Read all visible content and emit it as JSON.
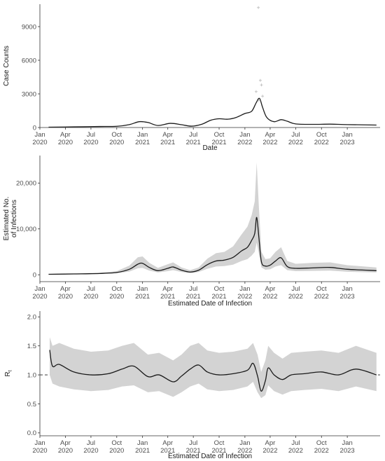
{
  "colors": {
    "line": "#1a1a1a",
    "band": "#d3d3d3",
    "points": "#b8b8b8",
    "axis": "#333333",
    "tick_text": "#4d4d4d",
    "reference": "#222222"
  },
  "chart_data": [
    {
      "id": "cases",
      "type": "line",
      "xlabel": "Date",
      "ylabel": "Case Counts",
      "ylim": [
        0,
        11000
      ],
      "yticks": [
        0,
        3000,
        6000,
        9000
      ],
      "ytick_labels": [
        "0",
        "3000",
        "6000",
        "9000"
      ],
      "x_axis": "date",
      "xlim": [
        "2020-01-01",
        "2023-04-28"
      ],
      "xtick_labels": [
        "Jan\n2020",
        "Apr\n2020",
        "Jul\n2020",
        "Oct\n2020",
        "Jan\n2021",
        "Apr\n2021",
        "Jul\n2021",
        "Oct\n2021",
        "Jan\n2022",
        "Apr\n2022",
        "Jul\n2022",
        "Oct\n2022",
        "Jan\n2023"
      ],
      "grid": false,
      "series": [
        {
          "kind": "smooth_line",
          "x": [
            "2020-02-01",
            "2020-05-01",
            "2020-08-01",
            "2020-10-01",
            "2020-11-15",
            "2020-12-20",
            "2021-01-20",
            "2021-02-25",
            "2021-04-10",
            "2021-05-20",
            "2021-06-25",
            "2021-08-01",
            "2021-09-01",
            "2021-10-01",
            "2021-11-01",
            "2021-12-01",
            "2022-01-01",
            "2022-01-25",
            "2022-02-10",
            "2022-02-22",
            "2022-03-05",
            "2022-03-20",
            "2022-04-15",
            "2022-05-10",
            "2022-06-01",
            "2022-07-01",
            "2022-09-01",
            "2022-11-01",
            "2023-01-01",
            "2023-04-15"
          ],
          "y": [
            30,
            60,
            90,
            110,
            260,
            520,
            450,
            180,
            370,
            250,
            120,
            300,
            650,
            780,
            740,
            900,
            1250,
            1450,
            2200,
            2600,
            1800,
            900,
            520,
            700,
            560,
            320,
            280,
            300,
            260,
            220
          ]
        },
        {
          "kind": "points",
          "x": [
            "2022-02-10",
            "2022-02-18",
            "2022-02-25",
            "2022-03-01",
            "2022-02-20",
            "2022-03-05"
          ],
          "y": [
            3200,
            10700,
            4200,
            3800,
            2400,
            2800
          ]
        }
      ]
    },
    {
      "id": "infections",
      "type": "line",
      "xlabel": "Estimated Date of Infection",
      "ylabel": "Estimated No. of Infections",
      "ylabel_lines": [
        "Estimated No.",
        "of Infections"
      ],
      "ylim": [
        -1500,
        26000
      ],
      "yticks": [
        0,
        10000,
        20000
      ],
      "ytick_labels": [
        "0",
        "10,000",
        "20,000"
      ],
      "x_axis": "date",
      "xlim": [
        "2020-01-01",
        "2023-04-28"
      ],
      "xtick_labels": [
        "Jan\n2020",
        "Apr\n2020",
        "Jul\n2020",
        "Oct\n2020",
        "Jan\n2021",
        "Apr\n2021",
        "Jul\n2021",
        "Oct\n2021",
        "Jan\n2022",
        "Apr\n2022",
        "Jul\n2022",
        "Oct\n2022",
        "Jan\n2023"
      ],
      "grid": false,
      "series": [
        {
          "kind": "estimate_with_interval",
          "x": [
            "2020-02-01",
            "2020-05-01",
            "2020-08-01",
            "2020-10-01",
            "2020-11-15",
            "2020-12-15",
            "2021-01-01",
            "2021-01-25",
            "2021-02-25",
            "2021-04-01",
            "2021-04-20",
            "2021-05-20",
            "2021-06-20",
            "2021-07-20",
            "2021-08-20",
            "2021-09-20",
            "2021-10-20",
            "2021-11-20",
            "2021-12-20",
            "2022-01-10",
            "2022-01-25",
            "2022-02-05",
            "2022-02-12",
            "2022-02-20",
            "2022-03-01",
            "2022-03-15",
            "2022-04-01",
            "2022-04-20",
            "2022-05-10",
            "2022-06-01",
            "2022-07-01",
            "2022-09-01",
            "2022-11-01",
            "2023-01-01",
            "2023-04-15"
          ],
          "y": [
            100,
            180,
            280,
            500,
            1200,
            2300,
            2500,
            1600,
            900,
            1400,
            1700,
            1000,
            600,
            1000,
            2200,
            3000,
            3200,
            3800,
            5200,
            6000,
            7500,
            9000,
            12500,
            8000,
            2800,
            1900,
            2100,
            3000,
            3700,
            1800,
            1400,
            1500,
            1600,
            1200,
            900
          ],
          "lower": [
            50,
            100,
            170,
            330,
            700,
            1400,
            1500,
            900,
            500,
            800,
            1000,
            600,
            350,
            600,
            1300,
            1800,
            1900,
            2200,
            3000,
            3400,
            4200,
            5000,
            7000,
            4500,
            1600,
            1100,
            1200,
            1800,
            2100,
            1000,
            800,
            850,
            900,
            650,
            500
          ],
          "upper": [
            180,
            300,
            450,
            800,
            2000,
            3800,
            4000,
            2600,
            1500,
            2300,
            2700,
            1600,
            1000,
            1600,
            3500,
            4700,
            5000,
            6200,
            8800,
            10500,
            13000,
            16000,
            24500,
            14500,
            5000,
            3400,
            3600,
            5000,
            6000,
            3000,
            2400,
            2600,
            2700,
            2100,
            1600
          ]
        }
      ]
    },
    {
      "id": "rt",
      "type": "line",
      "xlabel": "Estimated Date of Infection",
      "ylabel": "Rt",
      "ylabel_main": "R",
      "ylabel_sub": "t",
      "ylim": [
        -0.05,
        2.1
      ],
      "yticks": [
        0.0,
        0.5,
        1.0,
        1.5,
        2.0
      ],
      "ytick_labels": [
        "0.0",
        "0.5",
        "1.0",
        "1.5",
        "2.0"
      ],
      "reference_line": 1.0,
      "x_axis": "date",
      "xlim": [
        "2020-01-01",
        "2023-04-28"
      ],
      "xtick_labels": [
        "Jan\n2020",
        "Apr\n2020",
        "Jul\n2020",
        "Oct\n2020",
        "Jan\n2021",
        "Apr\n2021",
        "Jul\n2021",
        "Oct\n2021",
        "Jan\n2022",
        "Apr\n2022",
        "Jul\n2022",
        "Oct\n2022",
        "Jan\n2023"
      ],
      "grid": false,
      "series": [
        {
          "kind": "estimate_with_interval",
          "x": [
            "2020-02-05",
            "2020-02-15",
            "2020-03-10",
            "2020-05-01",
            "2020-07-01",
            "2020-09-01",
            "2020-10-20",
            "2020-12-01",
            "2021-01-20",
            "2021-03-01",
            "2021-04-20",
            "2021-05-20",
            "2021-06-20",
            "2021-07-20",
            "2021-08-20",
            "2021-10-01",
            "2021-11-20",
            "2022-01-10",
            "2022-01-30",
            "2022-02-15",
            "2022-02-28",
            "2022-03-15",
            "2022-03-25",
            "2022-04-15",
            "2022-05-15",
            "2022-06-15",
            "2022-08-01",
            "2022-10-01",
            "2022-12-01",
            "2023-02-01",
            "2023-04-15"
          ],
          "y": [
            1.43,
            1.15,
            1.18,
            1.05,
            1.0,
            1.02,
            1.1,
            1.15,
            0.97,
            1.0,
            0.88,
            0.98,
            1.1,
            1.17,
            1.05,
            1.0,
            1.02,
            1.08,
            1.2,
            0.98,
            0.72,
            0.9,
            1.12,
            1.0,
            0.92,
            1.0,
            1.02,
            1.05,
            1.0,
            1.1,
            1.0
          ],
          "lower": [
            1.0,
            0.85,
            0.8,
            0.75,
            0.72,
            0.74,
            0.8,
            0.82,
            0.7,
            0.72,
            0.62,
            0.7,
            0.8,
            0.85,
            0.75,
            0.72,
            0.74,
            0.8,
            0.88,
            0.7,
            0.6,
            0.65,
            0.82,
            0.72,
            0.66,
            0.72,
            0.74,
            0.76,
            0.72,
            0.8,
            0.72
          ],
          "upper": [
            1.65,
            1.5,
            1.55,
            1.45,
            1.4,
            1.42,
            1.5,
            1.55,
            1.35,
            1.38,
            1.25,
            1.35,
            1.5,
            1.55,
            1.42,
            1.38,
            1.4,
            1.45,
            1.55,
            1.35,
            1.05,
            1.25,
            1.5,
            1.38,
            1.28,
            1.38,
            1.4,
            1.42,
            1.38,
            1.5,
            1.38
          ]
        }
      ]
    }
  ]
}
